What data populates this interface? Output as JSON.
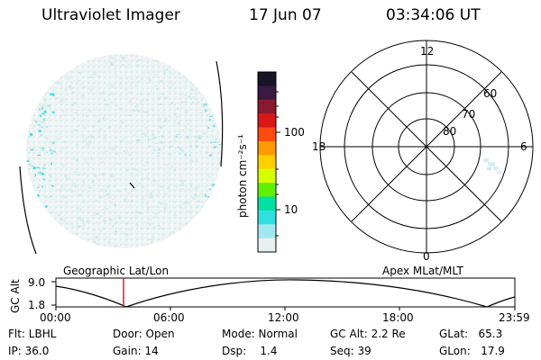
{
  "header": {
    "instrument": "Ultraviolet Imager",
    "date": "17 Jun 07",
    "time": "03:34:06 UT"
  },
  "colorbar": {
    "unit_label": "photon cm⁻²s⁻¹",
    "ticks": [
      "100",
      "10"
    ],
    "colors": [
      "#151524",
      "#3a1a40",
      "#8a1830",
      "#d81818",
      "#ff4a10",
      "#ff9a00",
      "#ffd000",
      "#d8ff00",
      "#60f000",
      "#00e0a0",
      "#30e0e0",
      "#a0e8f0",
      "#e8f0f0"
    ]
  },
  "polar_grid": {
    "mlt_labels": {
      "top": "12",
      "right": "6",
      "bottom": "0",
      "left": "18"
    },
    "lat_labels": [
      "60",
      "70",
      "80"
    ]
  },
  "timeline": {
    "left_label": "Geographic Lat/Lon",
    "right_label": "Apex MLat/MLT",
    "y_label": "GC Alt",
    "y_ticks": [
      "9.0",
      "1.8"
    ],
    "x_ticks": [
      "00:00",
      "06:00",
      "12:00",
      "18:00",
      "23:59"
    ]
  },
  "info": {
    "flt": "Flt: LBHL",
    "ip": "IP: 36.0",
    "door": "Door: Open",
    "gain": "Gain: 14",
    "mode": "Mode: Normal",
    "dsp": "Dsp:    1.4",
    "gc_alt": "GC Alt: 2.2 Re",
    "seq": "Seq: 39",
    "glat": "GLat:   65.3",
    "glon": "GLon:   17.9"
  }
}
